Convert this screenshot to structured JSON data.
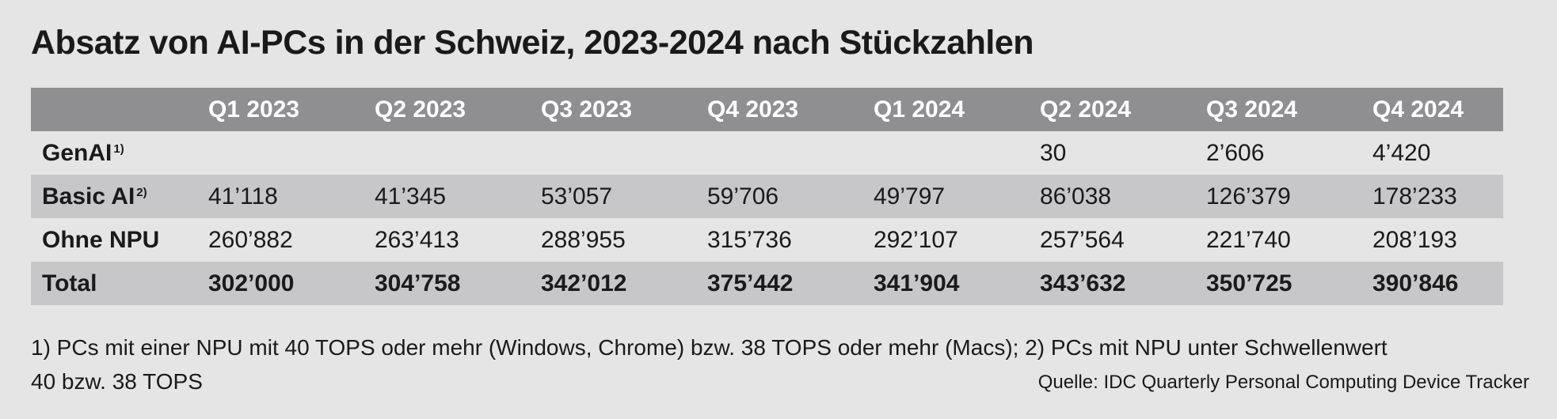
{
  "chart_data": {
    "type": "table",
    "title": "Absatz von AI-PCs in der Schweiz, 2023-2024 nach Stückzahlen",
    "columns": [
      "Q1 2023",
      "Q2 2023",
      "Q3 2023",
      "Q4 2023",
      "Q1 2024",
      "Q2 2024",
      "Q3 2024",
      "Q4 2024"
    ],
    "rows": [
      {
        "label": "GenAI",
        "note": "1)",
        "values": [
          "",
          "",
          "",
          "",
          "",
          "30",
          "2’606",
          "4’420"
        ],
        "shade": "light",
        "bold": false
      },
      {
        "label": "Basic AI",
        "note": "2)",
        "values": [
          "41’118",
          "41’345",
          "53’057",
          "59’706",
          "49’797",
          "86’038",
          "126’379",
          "178’233"
        ],
        "shade": "dark",
        "bold": false
      },
      {
        "label": "Ohne NPU",
        "note": "",
        "values": [
          "260’882",
          "263’413",
          "288’955",
          "315’736",
          "292’107",
          "257’564",
          "221’740",
          "208’193"
        ],
        "shade": "light",
        "bold": false
      },
      {
        "label": "Total",
        "note": "",
        "values": [
          "302’000",
          "304’758",
          "342’012",
          "375’442",
          "341’904",
          "343’632",
          "350’725",
          "390’846"
        ],
        "shade": "dark",
        "bold": true
      }
    ],
    "footnote_line1": "1) PCs mit einer NPU mit 40 TOPS oder mehr (Windows, Chrome) bzw. 38 TOPS oder mehr (Macs); 2) PCs mit NPU unter Schwellenwert",
    "footnote_line2": "40 bzw. 38 TOPS",
    "source": "Quelle: IDC Quarterly Personal Computing Device Tracker"
  },
  "colors": {
    "background": "#e5e5e6",
    "header": "#8f8f91",
    "row_dark": "#c7c7c9"
  }
}
